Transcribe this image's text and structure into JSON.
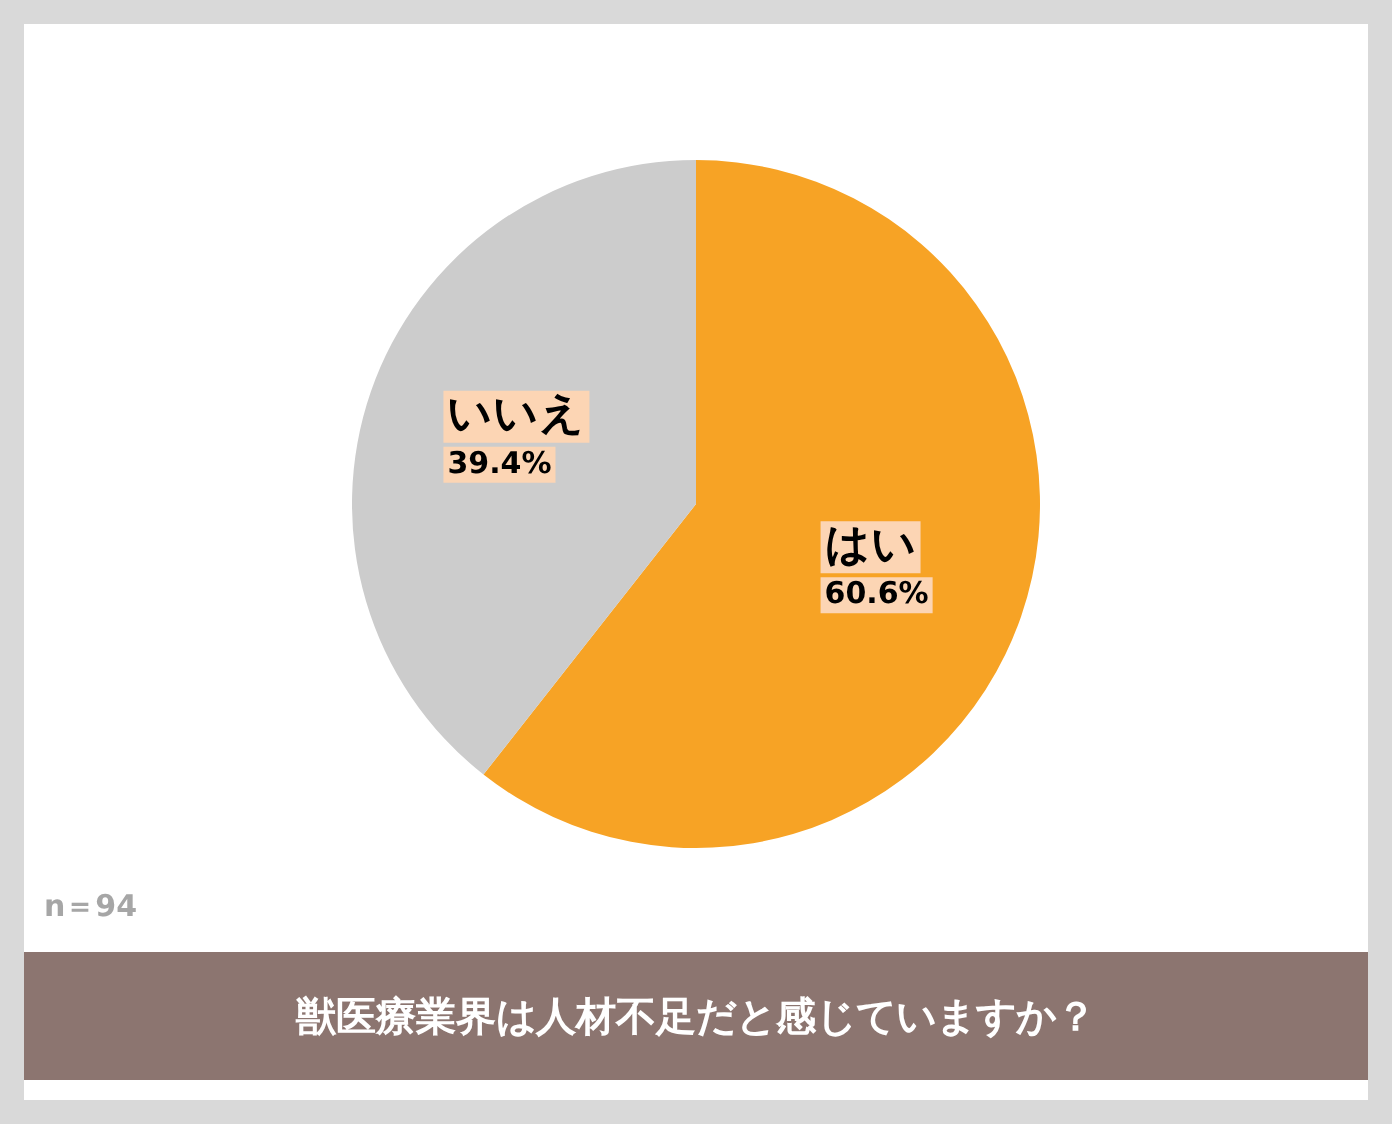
{
  "chart_data": {
    "type": "pie",
    "title": "獣医療業界は人材不足だと感じていますか？",
    "categories": [
      "はい",
      "いいえ"
    ],
    "values": [
      60.6,
      39.4
    ],
    "colors": [
      "#f7a325",
      "#cccccc"
    ],
    "value_labels": [
      "60.6%",
      "39.4%"
    ],
    "legend": false,
    "annotations": [
      "n＝94"
    ]
  }
}
